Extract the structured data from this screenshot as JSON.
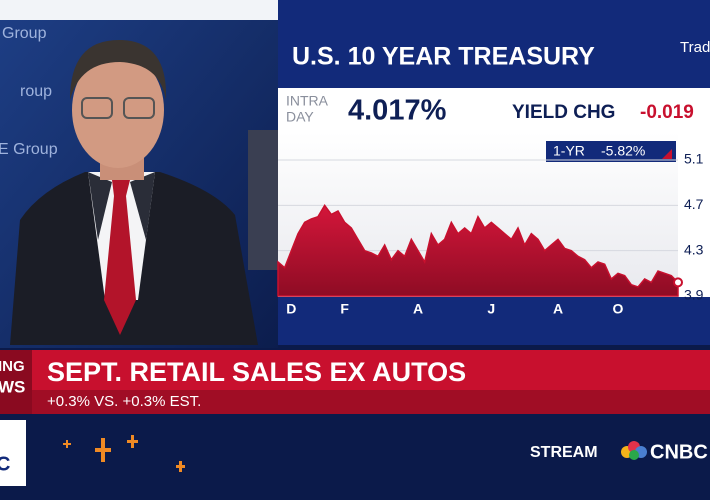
{
  "video": {
    "backdrop_texts": [
      "Group",
      "roup",
      "E Group"
    ]
  },
  "panel": {
    "title": "U.S. 10 YEAR TREASURY",
    "logo": "Trad",
    "intraday_label": [
      "INTRA",
      "DAY"
    ],
    "yield": "4.017%",
    "yield_chg_label": "YIELD CHG",
    "yield_chg": "-0.019",
    "one_year_label": "1-YR",
    "one_year_change": "-5.82%"
  },
  "chart_data": {
    "type": "area",
    "color": "#c8102e",
    "categories": [
      null,
      null,
      "D",
      null,
      null,
      null,
      null,
      null,
      null,
      null,
      "F",
      null,
      null,
      null,
      null,
      null,
      null,
      null,
      null,
      null,
      null,
      "A",
      null,
      null,
      null,
      null,
      null,
      null,
      null,
      null,
      null,
      null,
      "J",
      null,
      null,
      null,
      null,
      null,
      null,
      null,
      null,
      null,
      "A",
      null,
      null,
      null,
      null,
      null,
      null,
      null,
      null,
      "O",
      null,
      null,
      null,
      null,
      null,
      null,
      null,
      null,
      null
    ],
    "values": [
      4.2,
      4.15,
      4.3,
      4.45,
      4.55,
      4.58,
      4.6,
      4.7,
      4.62,
      4.65,
      4.55,
      4.5,
      4.4,
      4.3,
      4.28,
      4.25,
      4.35,
      4.22,
      4.3,
      4.25,
      4.4,
      4.3,
      4.2,
      4.45,
      4.35,
      4.4,
      4.55,
      4.45,
      4.5,
      4.45,
      4.6,
      4.5,
      4.55,
      4.5,
      4.45,
      4.4,
      4.5,
      4.35,
      4.45,
      4.4,
      4.3,
      4.35,
      4.4,
      4.32,
      4.3,
      4.25,
      4.22,
      4.15,
      4.2,
      4.18,
      4.05,
      4.1,
      4.08,
      4.0,
      3.98,
      4.05,
      4.02,
      4.12,
      4.1,
      4.08,
      4.02
    ],
    "ylim": [
      3.9,
      5.1
    ],
    "yticks": [
      3.9,
      4.3,
      4.7,
      5.1
    ]
  },
  "headline": {
    "breaking": [
      "ING",
      "WS"
    ],
    "title": "SEPT. RETAIL SALES EX AUTOS",
    "subtitle": "+0.3% VS. +0.3% EST."
  },
  "footer": {
    "network_left": "C",
    "stream": "STREAM",
    "network": "CNBC"
  }
}
